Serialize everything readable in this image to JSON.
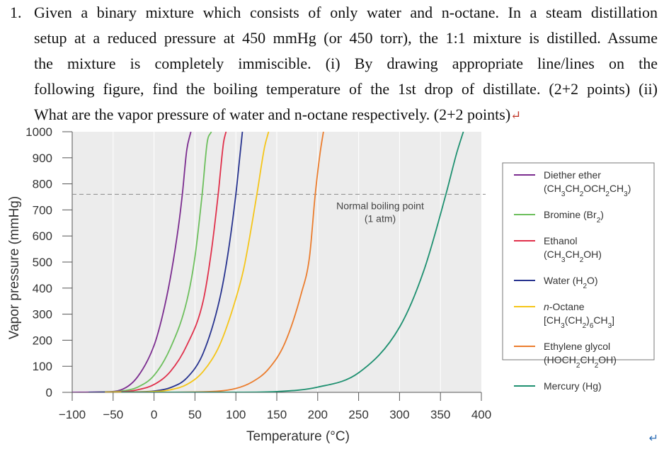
{
  "question": {
    "number": "1.",
    "lines": [
      "Given a binary mixture which consists of only water and n-octane. In a steam distillation",
      "setup at a reduced pressure at 450 mmHg (or 450 torr), the 1:1 mixture is distilled. Assume",
      "the mixture is completely immiscible. (i) By drawing appropriate line/lines on the",
      "following figure, find the boiling temperature of the 1st drop of distillate. (2+2 points) (ii)",
      "What are the vapor pressure of water and n-octane respectively. (2+2 points)"
    ]
  },
  "chart_data": {
    "type": "line",
    "xlabel": "Temperature (°C)",
    "ylabel": "Vapor pressure (mmHg)",
    "xlim": [
      -100,
      400
    ],
    "ylim": [
      0,
      1000
    ],
    "xticks": [
      "−100",
      "−50",
      "0",
      "50",
      "100",
      "150",
      "200",
      "250",
      "300",
      "350",
      "400"
    ],
    "yticks": [
      "0",
      "100",
      "200",
      "300",
      "400",
      "500",
      "600",
      "700",
      "800",
      "900",
      "1000"
    ],
    "grid": true,
    "reference_line": {
      "y": 760,
      "label_lines": [
        "Normal boiling point",
        "(1 atm)"
      ]
    },
    "legend_position": "right",
    "series": [
      {
        "name_lines": [
          "Diether ether",
          "(CH3CH2OCH2CH3)"
        ],
        "color": "#7b2c8f",
        "x": [
          -100,
          -60,
          -40,
          -20,
          0,
          10,
          20,
          30,
          34.6,
          40,
          45
        ],
        "y": [
          0,
          2,
          10,
          60,
          180,
          290,
          440,
          640,
          760,
          930,
          1000
        ]
      },
      {
        "name_lines": [
          "Bromine (Br2)"
        ],
        "color": "#6cbf5c",
        "x": [
          -75,
          -40,
          -20,
          0,
          20,
          40,
          50,
          58.8,
          65,
          70
        ],
        "y": [
          0,
          5,
          20,
          65,
          170,
          350,
          520,
          760,
          960,
          1000
        ]
      },
      {
        "name_lines": [
          "Ethanol",
          "(CH3CH2OH)"
        ],
        "color": "#e0304b",
        "x": [
          -80,
          -40,
          -20,
          0,
          20,
          40,
          60,
          70,
          78.4,
          85,
          88
        ],
        "y": [
          0,
          2,
          10,
          30,
          80,
          180,
          350,
          540,
          760,
          960,
          1000
        ]
      },
      {
        "name_lines": [
          "Water (H2O)"
        ],
        "color": "#27338f",
        "x": [
          -80,
          -20,
          0,
          20,
          40,
          60,
          80,
          90,
          100,
          105,
          108
        ],
        "y": [
          0,
          2,
          5,
          18,
          55,
          150,
          355,
          525,
          760,
          910,
          1000
        ]
      },
      {
        "name_lines": [
          "n-Octane",
          "[CH3(CH2)6CH3]"
        ],
        "color": "#f5c518",
        "x": [
          -60,
          0,
          20,
          40,
          60,
          80,
          100,
          110,
          125.7,
          135,
          140
        ],
        "y": [
          0,
          3,
          10,
          30,
          80,
          180,
          360,
          480,
          760,
          940,
          1000
        ]
      },
      {
        "name_lines": [
          "Ethylene glycol",
          "(HOCH2CH2OH)"
        ],
        "color": "#eb7d2e",
        "x": [
          -20,
          60,
          100,
          120,
          140,
          160,
          180,
          190,
          197,
          203,
          207
        ],
        "y": [
          0,
          2,
          15,
          40,
          90,
          190,
          380,
          520,
          760,
          920,
          1000
        ]
      },
      {
        "name_lines": [
          "Mercury (Hg)"
        ],
        "color": "#1e9070",
        "x": [
          -40,
          100,
          150,
          200,
          250,
          300,
          330,
          356.7,
          370,
          378
        ],
        "y": [
          0,
          0.3,
          3,
          20,
          75,
          250,
          470,
          760,
          920,
          1000
        ]
      }
    ]
  }
}
